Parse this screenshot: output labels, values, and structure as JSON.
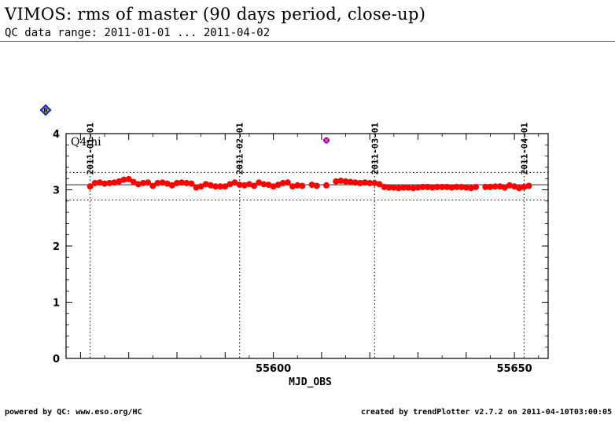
{
  "header": {
    "title": "VIMOS: rms of master (90 days period, close-up)",
    "subtitle": "QC data range: 2011-01-01 ... 2011-04-02"
  },
  "footer": {
    "left": "powered by QC: www.eso.org/HC",
    "right": "created by trendPlotter v2.7.2 on 2011-04-10T03:00:05"
  },
  "badge": {
    "label": "B",
    "color": "#1a3cff"
  },
  "chart_data": {
    "type": "scatter",
    "panel_label": "Q4/hi",
    "xlabel": "MJD_OBS",
    "xlim": [
      55557,
      55657
    ],
    "ylim": [
      0,
      4
    ],
    "x_ticks": [
      55600,
      55650
    ],
    "y_ticks": [
      0,
      1,
      2,
      3,
      4
    ],
    "date_markers": [
      {
        "label": "2011-01-01",
        "x": 55562
      },
      {
        "label": "2011-02-01",
        "x": 55593
      },
      {
        "label": "2011-03-01",
        "x": 55621
      },
      {
        "label": "2011-04-01",
        "x": 55652
      }
    ],
    "reference_lines": {
      "mean": 3.09,
      "upper": 3.31,
      "lower": 2.82
    },
    "series": [
      {
        "color": "#ff0000",
        "x": [
          55562.0,
          55563.0,
          55564.0,
          55565.0,
          55566.0,
          55567.0,
          55568.0,
          55569.0,
          55570.0,
          55571.0,
          55572.0,
          55573.0,
          55574.0,
          55575.0,
          55576.0,
          55577.0,
          55578.0,
          55579.0,
          55580.0,
          55581.0,
          55582.0,
          55583.0,
          55584.0,
          55585.0,
          55586.0,
          55587.0,
          55588.0,
          55589.0,
          55590.0,
          55591.0,
          55592.0,
          55593.0,
          55594.0,
          55595.0,
          55596.0,
          55597.0,
          55598.0,
          55599.0,
          55600.0,
          55601.0,
          55602.0,
          55603.0,
          55604.0,
          55605.0,
          55606.0,
          55608.0,
          55609.0,
          55611.0,
          55613.0,
          55614.0,
          55615.0,
          55616.0,
          55617.0,
          55618.0,
          55619.0,
          55620.0,
          55621.0,
          55622.0,
          55623.0,
          55624.0,
          55625.0,
          55626.0,
          55627.0,
          55628.0,
          55629.0,
          55630.0,
          55631.0,
          55632.0,
          55633.0,
          55634.0,
          55635.0,
          55636.0,
          55637.0,
          55638.0,
          55639.0,
          55640.0,
          55641.0,
          55642.0,
          55644.0,
          55645.0,
          55646.0,
          55647.0,
          55648.0,
          55649.0,
          55650.0,
          55651.0,
          55652.0,
          55653.0
        ],
        "y": [
          3.06,
          3.12,
          3.13,
          3.11,
          3.12,
          3.13,
          3.15,
          3.18,
          3.19,
          3.14,
          3.1,
          3.12,
          3.13,
          3.07,
          3.12,
          3.13,
          3.11,
          3.08,
          3.12,
          3.13,
          3.12,
          3.11,
          3.04,
          3.06,
          3.1,
          3.08,
          3.06,
          3.06,
          3.06,
          3.1,
          3.13,
          3.09,
          3.08,
          3.1,
          3.07,
          3.13,
          3.1,
          3.09,
          3.06,
          3.09,
          3.12,
          3.13,
          3.06,
          3.08,
          3.07,
          3.09,
          3.07,
          3.08,
          3.15,
          3.16,
          3.15,
          3.14,
          3.13,
          3.12,
          3.13,
          3.12,
          3.12,
          3.1,
          3.05,
          3.04,
          3.04,
          3.03,
          3.04,
          3.04,
          3.03,
          3.04,
          3.05,
          3.05,
          3.04,
          3.05,
          3.05,
          3.05,
          3.04,
          3.05,
          3.05,
          3.04,
          3.03,
          3.05,
          3.05,
          3.05,
          3.06,
          3.06,
          3.04,
          3.08,
          3.06,
          3.03,
          3.05,
          3.07
        ]
      },
      {
        "color": "#8a008a",
        "x": [
          55611.0
        ],
        "y": [
          3.88
        ]
      }
    ]
  }
}
